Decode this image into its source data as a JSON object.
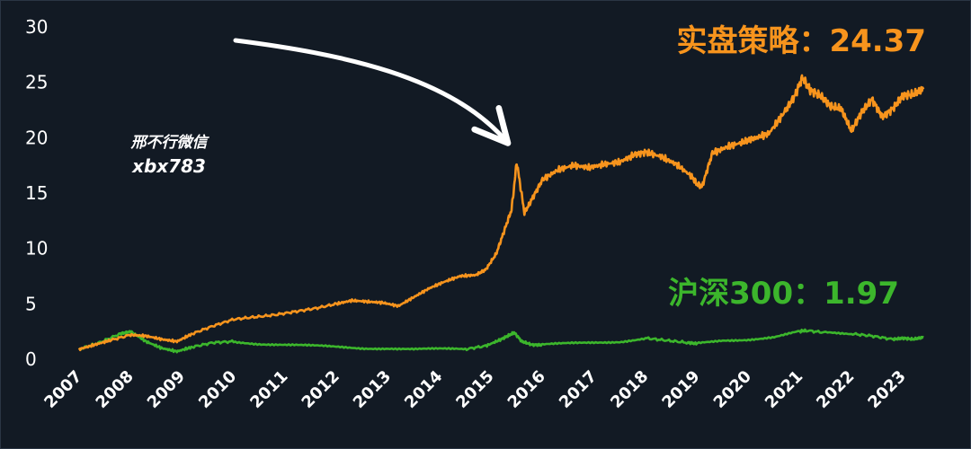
{
  "watermark": {
    "line1": "邢不行微信",
    "line2": "xbx783"
  },
  "colors": {
    "background": "#121a24",
    "strategy": "#f7941d",
    "benchmark": "#3cb62c",
    "arrow": "#ffffff"
  },
  "chart_data": {
    "type": "line",
    "ylim": [
      0,
      30
    ],
    "yticks": [
      0,
      5,
      10,
      15,
      20,
      25,
      30
    ],
    "xlim": [
      2007.0,
      2023.45
    ],
    "xticks": [
      "2007",
      "2008",
      "2009",
      "2010",
      "2011",
      "2012",
      "2013",
      "2014",
      "2015",
      "2016",
      "2017",
      "2018",
      "2019",
      "2020",
      "2021",
      "2022",
      "2023"
    ],
    "grid": false,
    "series": [
      {
        "name": "实盘策略",
        "label": "实盘策略：24.37",
        "final_value": 24.37,
        "x": [
          2007.0,
          2007.3,
          2007.6,
          2008.0,
          2008.3,
          2008.6,
          2008.9,
          2009.2,
          2009.6,
          2010.0,
          2010.4,
          2010.8,
          2011.2,
          2011.6,
          2012.0,
          2012.3,
          2012.6,
          2012.9,
          2013.2,
          2013.5,
          2013.8,
          2014.1,
          2014.4,
          2014.7,
          2014.9,
          2015.1,
          2015.25,
          2015.4,
          2015.5,
          2015.65,
          2015.8,
          2016.0,
          2016.3,
          2016.6,
          2016.9,
          2017.2,
          2017.5,
          2017.8,
          2018.0,
          2018.3,
          2018.6,
          2018.9,
          2019.0,
          2019.1,
          2019.3,
          2019.6,
          2019.9,
          2020.1,
          2020.4,
          2020.7,
          2020.9,
          2021.05,
          2021.2,
          2021.4,
          2021.6,
          2021.8,
          2022.0,
          2022.2,
          2022.4,
          2022.6,
          2022.8,
          2023.0,
          2023.2,
          2023.4
        ],
        "y": [
          0.9,
          1.3,
          1.7,
          2.2,
          2.1,
          1.8,
          1.6,
          2.3,
          3.0,
          3.6,
          3.8,
          4.0,
          4.3,
          4.6,
          5.0,
          5.3,
          5.2,
          5.1,
          4.8,
          5.6,
          6.4,
          7.0,
          7.5,
          7.6,
          8.1,
          9.5,
          11.5,
          13.5,
          17.8,
          13.2,
          14.5,
          16.2,
          17.1,
          17.5,
          17.3,
          17.6,
          17.8,
          18.5,
          18.7,
          18.3,
          17.6,
          16.5,
          15.8,
          15.6,
          18.6,
          19.2,
          19.6,
          19.9,
          20.4,
          22.3,
          23.8,
          25.4,
          24.3,
          23.8,
          22.8,
          22.6,
          20.6,
          22.3,
          23.5,
          21.9,
          22.6,
          23.8,
          23.9,
          24.37
        ]
      },
      {
        "name": "沪深300",
        "label": "沪深300：1.97",
        "final_value": 1.97,
        "x": [
          2007.0,
          2007.4,
          2007.8,
          2008.0,
          2008.3,
          2008.6,
          2008.9,
          2009.2,
          2009.6,
          2010.0,
          2010.5,
          2011.0,
          2011.5,
          2012.0,
          2012.5,
          2013.0,
          2013.5,
          2014.0,
          2014.5,
          2014.9,
          2015.2,
          2015.45,
          2015.6,
          2015.8,
          2016.0,
          2016.5,
          2017.0,
          2017.5,
          2018.0,
          2018.4,
          2018.8,
          2019.0,
          2019.5,
          2020.0,
          2020.5,
          2021.0,
          2021.1,
          2021.5,
          2022.0,
          2022.4,
          2022.8,
          2023.0,
          2023.2,
          2023.4
        ],
        "y": [
          0.9,
          1.5,
          2.3,
          2.5,
          1.6,
          1.0,
          0.7,
          1.1,
          1.5,
          1.6,
          1.4,
          1.3,
          1.2,
          1.1,
          1.0,
          1.0,
          0.9,
          0.9,
          0.9,
          1.2,
          1.8,
          2.4,
          1.6,
          1.3,
          1.3,
          1.4,
          1.5,
          1.6,
          1.9,
          1.7,
          1.5,
          1.4,
          1.7,
          1.8,
          2.0,
          2.5,
          2.6,
          2.4,
          2.3,
          2.1,
          1.8,
          1.9,
          1.8,
          1.97
        ]
      }
    ]
  }
}
